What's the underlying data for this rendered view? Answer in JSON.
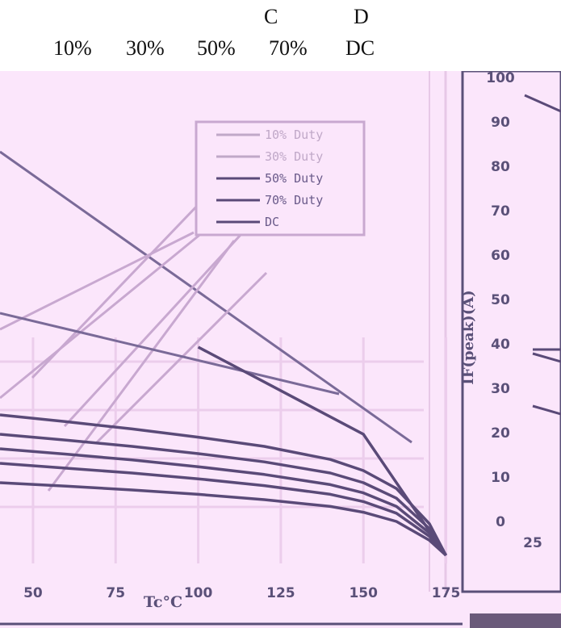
{
  "top_labels": {
    "row1": [
      "C",
      "D"
    ],
    "row2": [
      "10%",
      "30%",
      "50%",
      "70%",
      "DC"
    ]
  },
  "colors": {
    "background": "#fbe6fb",
    "grid": "#eccdec",
    "curve": "#5a4a78",
    "legend_text": "#6a5a8a",
    "legend_text_faded": "#c0a8c8",
    "axis": "#5a5078"
  },
  "chart_data": {
    "type": "line",
    "xlabel": "Tc°C",
    "xlim": [
      40,
      180
    ],
    "ylim": [
      0,
      100
    ],
    "x_ticks": [
      "50",
      "75",
      "100",
      "125",
      "150",
      "175"
    ],
    "right_y_ticks": [
      "100",
      "90",
      "80",
      "70",
      "60",
      "50",
      "40",
      "30",
      "20",
      "10",
      "0"
    ],
    "right_x_tick": "25",
    "right_ylabel": "IF(peak)(A)",
    "legend": [
      "10% Duty",
      "30% Duty",
      "50% Duty",
      "70% Duty",
      "DC"
    ],
    "series": [
      {
        "name": "10% Duty",
        "x": [
          40,
          60,
          80,
          100,
          120,
          140,
          150,
          160,
          170,
          175
        ],
        "y": [
          29,
          27.6,
          26.1,
          24.4,
          22.5,
          19.8,
          17.5,
          13.8,
          6.5,
          0
        ]
      },
      {
        "name": "30% Duty",
        "x": [
          40,
          60,
          80,
          100,
          120,
          140,
          150,
          160,
          170,
          175
        ],
        "y": [
          25,
          23.8,
          22.5,
          21.0,
          19.3,
          17.0,
          15.0,
          11.8,
          5.5,
          0
        ]
      },
      {
        "name": "50% Duty",
        "x": [
          40,
          60,
          80,
          100,
          120,
          140,
          150,
          160,
          170,
          175
        ],
        "y": [
          22,
          20.9,
          19.7,
          18.3,
          16.7,
          14.6,
          12.9,
          10.1,
          4.6,
          0
        ]
      },
      {
        "name": "70% Duty",
        "x": [
          40,
          60,
          80,
          100,
          120,
          140,
          150,
          160,
          170,
          175
        ],
        "y": [
          19,
          18.0,
          17.0,
          15.8,
          14.4,
          12.6,
          11.1,
          8.7,
          3.9,
          0
        ]
      },
      {
        "name": "DC",
        "x": [
          40,
          60,
          80,
          100,
          120,
          140,
          150,
          160,
          170,
          175
        ],
        "y": [
          15,
          14.3,
          13.5,
          12.6,
          11.5,
          10.1,
          8.9,
          7.0,
          3.1,
          0
        ]
      }
    ]
  }
}
